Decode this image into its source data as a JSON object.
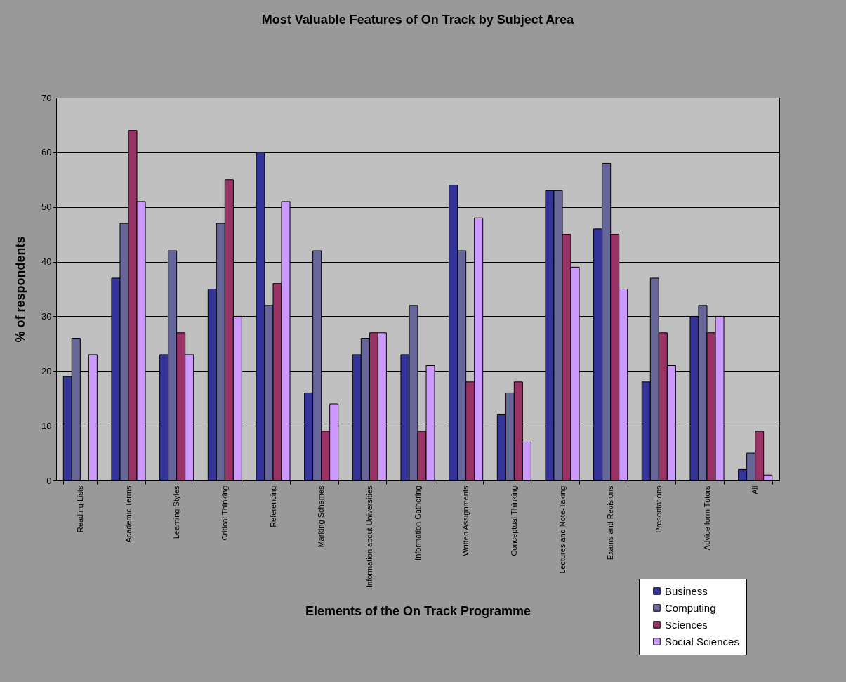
{
  "chart_data": {
    "type": "bar",
    "title": "Most Valuable Features of On Track by Subject Area",
    "xlabel": "Elements of the On Track Programme",
    "ylabel": "% of respondents",
    "categories": [
      "Reading Lists",
      "Academic Terms",
      "Learning Styles",
      "Critical Thinking",
      "Referencing",
      "Marking Schemes",
      "Information about Universities",
      "Information Gathering",
      "Written Assignments",
      "Conceptual Thinking",
      "Lectures and Note-Taking",
      "Exams and Revisions",
      "Presentations",
      "Advice form Tutors",
      "All"
    ],
    "series": [
      {
        "name": "Business",
        "color": "#333399",
        "values": [
          19,
          37,
          23,
          35,
          60,
          16,
          23,
          23,
          54,
          12,
          53,
          46,
          18,
          30,
          2
        ]
      },
      {
        "name": "Computing",
        "color": "#666699",
        "values": [
          26,
          47,
          42,
          47,
          32,
          42,
          26,
          32,
          42,
          16,
          53,
          58,
          37,
          32,
          5
        ]
      },
      {
        "name": "Sciences",
        "color": "#993366",
        "values": [
          null,
          64,
          27,
          55,
          36,
          9,
          27,
          9,
          18,
          18,
          45,
          45,
          27,
          27,
          9
        ]
      },
      {
        "name": "Social Sciences",
        "color": "#cc99ff",
        "values": [
          23,
          51,
          23,
          30,
          51,
          14,
          27,
          21,
          48,
          7,
          39,
          35,
          21,
          30,
          1
        ]
      }
    ],
    "ylim": [
      0,
      70
    ],
    "yticks": [
      0,
      10,
      20,
      30,
      40,
      50,
      60,
      70
    ],
    "grid": "y",
    "legend": "bottom right"
  }
}
